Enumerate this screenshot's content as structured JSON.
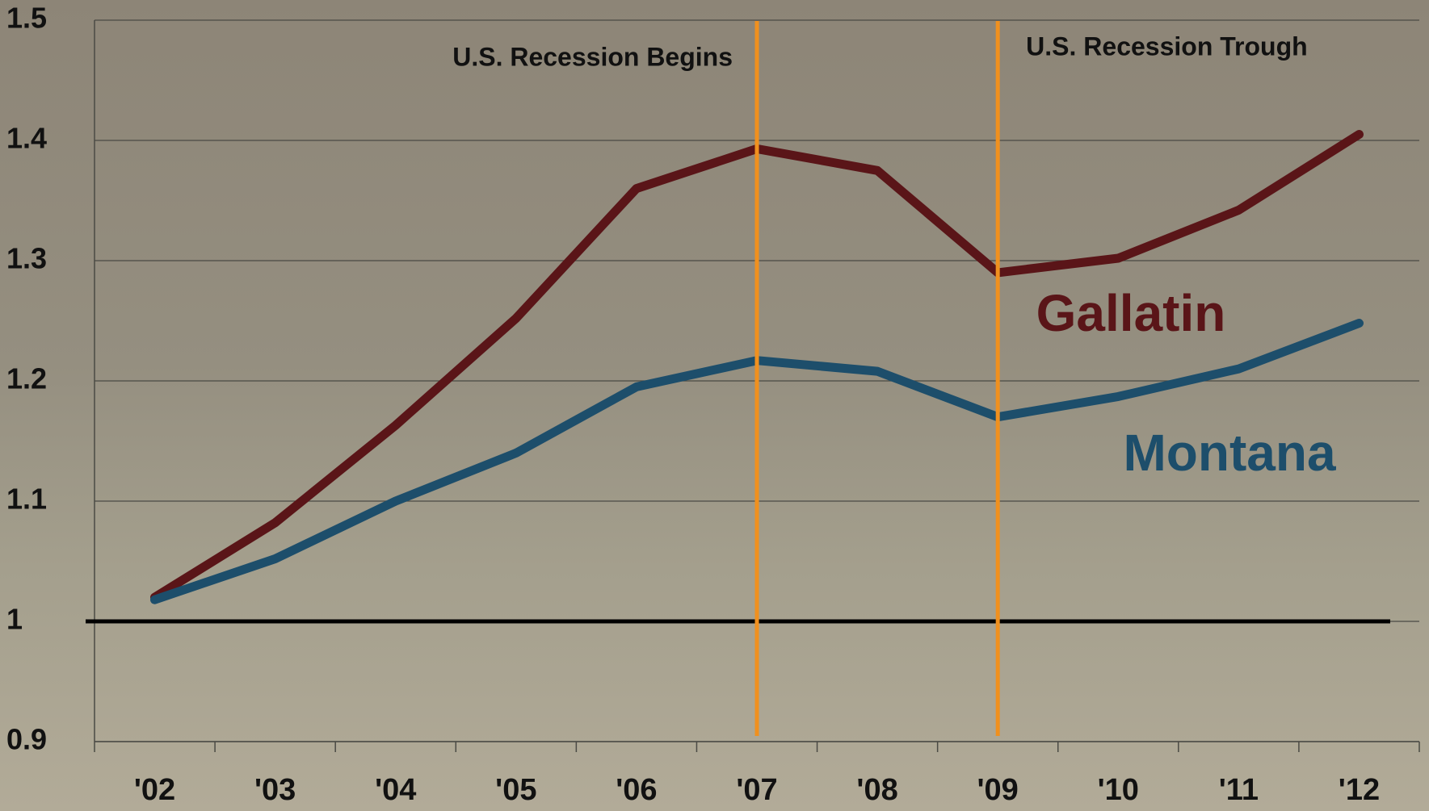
{
  "chart_data": {
    "type": "line",
    "categories": [
      "'02",
      "'03",
      "'04",
      "'05",
      "'06",
      "'07",
      "'08",
      "'09",
      "'10",
      "'11",
      "'12"
    ],
    "series": [
      {
        "name": "Gallatin",
        "color": "#5a1518",
        "values": [
          1.02,
          1.082,
          1.163,
          1.252,
          1.36,
          1.393,
          1.375,
          1.29,
          1.302,
          1.342,
          1.405
        ]
      },
      {
        "name": "Montana",
        "color": "#1d4e6b",
        "values": [
          1.018,
          1.052,
          1.1,
          1.14,
          1.195,
          1.217,
          1.208,
          1.17,
          1.187,
          1.21,
          1.248
        ]
      }
    ],
    "ylim": [
      0.9,
      1.5
    ],
    "yticks": [
      0.9,
      1,
      1.1,
      1.2,
      1.3,
      1.4,
      1.5
    ],
    "grid": true,
    "baseline": 1,
    "annotations": [
      {
        "text": "U.S. Recession Begins",
        "x": "'07",
        "color": "#f0901e"
      },
      {
        "text": "U.S. Recession Trough",
        "x": "'09",
        "color": "#f0901e"
      }
    ]
  }
}
